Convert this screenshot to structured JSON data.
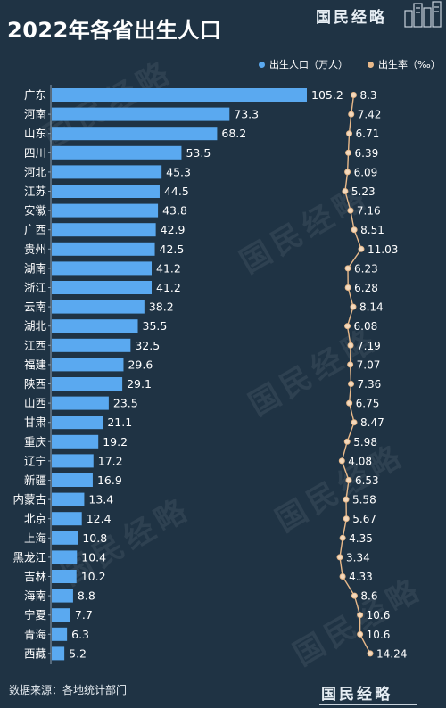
{
  "header": {
    "title": "2022年各省出生人口",
    "brand": "国民经略"
  },
  "legend": {
    "population_label": "出生人口（万人）",
    "rate_label": "出生率（‰）"
  },
  "footer": {
    "source": "数据来源：各地统计部门",
    "brand": "国民经略"
  },
  "watermark": "国民经略",
  "colors": {
    "background": "#1f3344",
    "bar": "#5aa9f0",
    "line": "#e8b98a",
    "point_fill": "#f3d9bd"
  },
  "chart_data": {
    "type": "bar",
    "orientation": "horizontal",
    "title": "2022年各省出生人口",
    "categories": [
      "广东",
      "河南",
      "山东",
      "四川",
      "河北",
      "江苏",
      "安徽",
      "广西",
      "贵州",
      "湖南",
      "浙江",
      "云南",
      "湖北",
      "江西",
      "福建",
      "陕西",
      "山西",
      "甘肃",
      "重庆",
      "辽宁",
      "新疆",
      "内蒙古",
      "北京",
      "上海",
      "黑龙江",
      "吉林",
      "海南",
      "宁夏",
      "青海",
      "西藏"
    ],
    "series": [
      {
        "name": "出生人口（万人）",
        "type": "bar",
        "values": [
          105.2,
          73.3,
          68.2,
          53.5,
          45.3,
          44.5,
          43.8,
          42.9,
          42.5,
          41.2,
          41.2,
          38.2,
          35.5,
          32.5,
          29.6,
          29.1,
          23.5,
          21.1,
          19.2,
          17.2,
          16.9,
          13.4,
          12.4,
          10.8,
          10.4,
          10.2,
          8.8,
          7.7,
          6.3,
          5.2
        ],
        "labels": [
          "105.2",
          "73.3",
          "68.2",
          "53.5",
          "45.3",
          "44.5",
          "43.8",
          "42.9",
          "42.5",
          "41.2",
          "41.2",
          "38.2",
          "35.5",
          "32.5",
          "29.6",
          "29.1",
          "23.5",
          "21.1",
          "19.2",
          "17.2",
          "16.9",
          "13.4",
          "12.4",
          "10.8",
          "10.4",
          "10.2",
          "8.8",
          "7.7",
          "6.3",
          "5.2"
        ]
      },
      {
        "name": "出生率（‰）",
        "type": "line",
        "values": [
          8.3,
          7.42,
          6.71,
          6.39,
          6.09,
          5.23,
          7.16,
          8.51,
          11.03,
          6.23,
          6.28,
          8.14,
          6.08,
          7.19,
          7.07,
          7.36,
          6.75,
          8.47,
          5.98,
          4.08,
          6.53,
          5.58,
          5.67,
          4.35,
          3.34,
          4.33,
          8.6,
          10.6,
          10.6,
          14.24
        ],
        "labels": [
          "8.3",
          "7.42",
          "6.71",
          "6.39",
          "6.09",
          "5.23",
          "7.16",
          "8.51",
          "11.03",
          "6.23",
          "6.28",
          "8.14",
          "6.08",
          "7.19",
          "7.07",
          "7.36",
          "6.75",
          "8.47",
          "5.98",
          "4.08",
          "6.53",
          "5.58",
          "5.67",
          "4.35",
          "3.34",
          "4.33",
          "8.6",
          "10.6",
          "10.6",
          "14.24"
        ]
      }
    ],
    "bar_xlim": [
      0,
      110
    ],
    "rate_xlim": [
      0,
      16
    ],
    "legend_position": "top-right",
    "grid": false
  }
}
